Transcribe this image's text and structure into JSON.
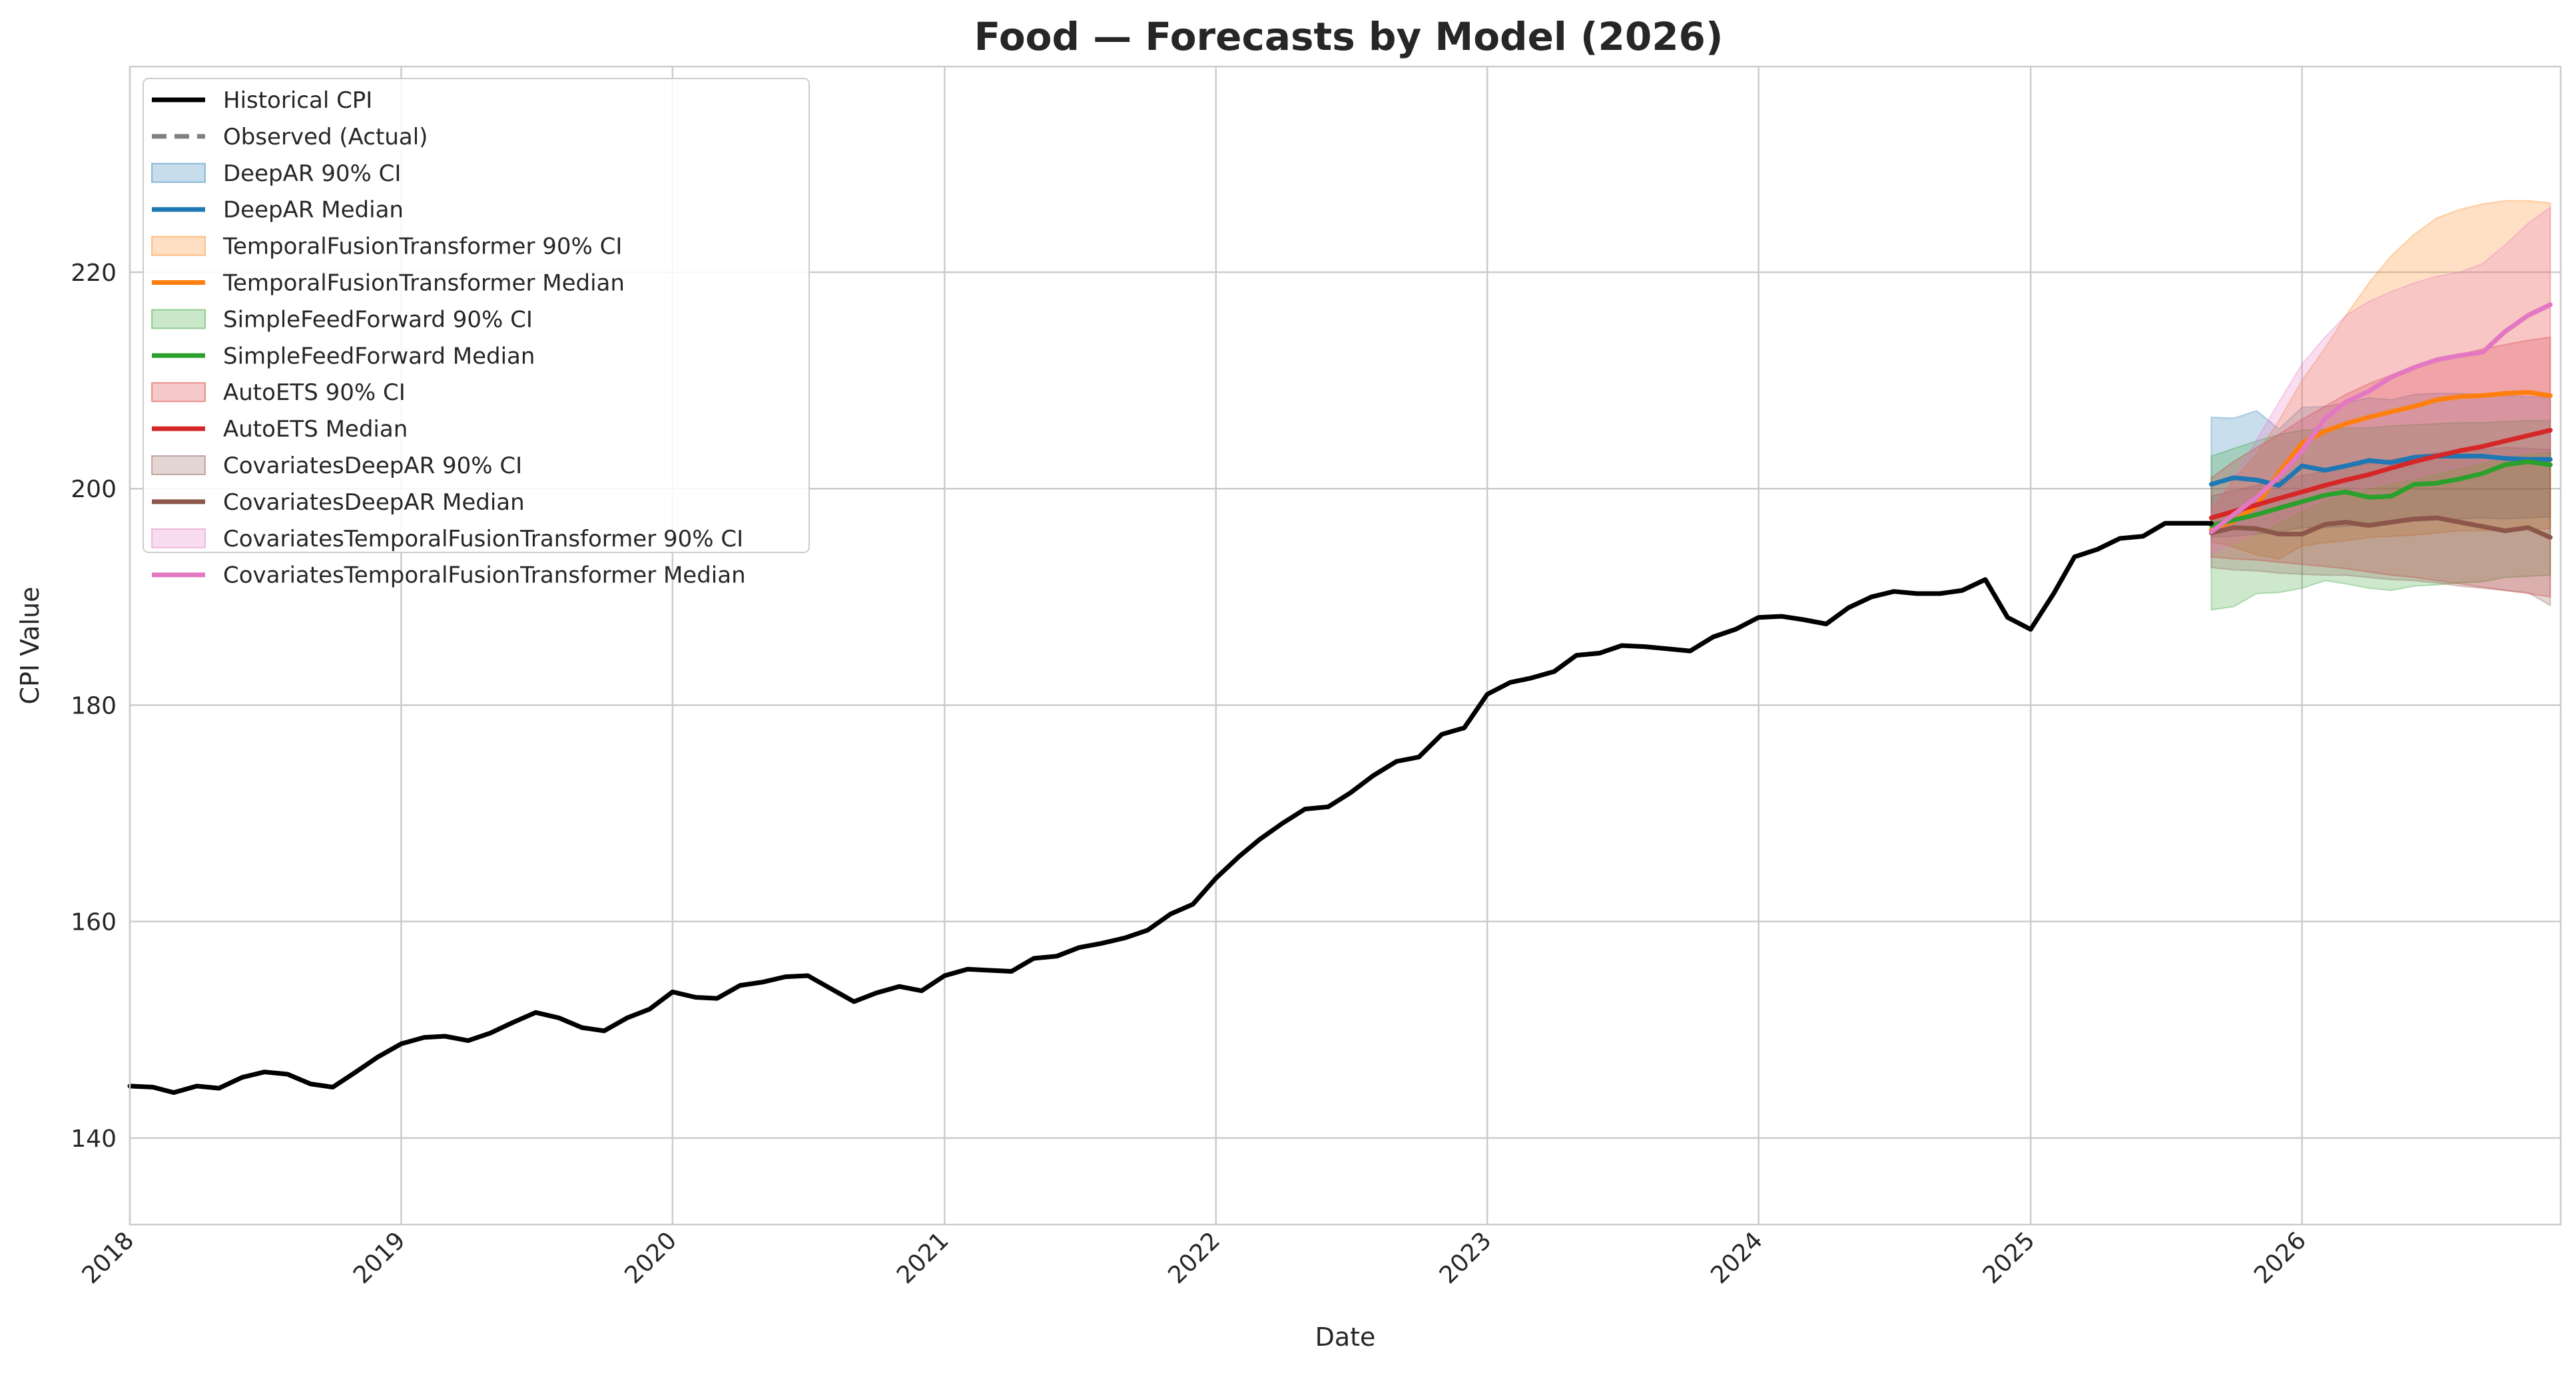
{
  "chart_data": {
    "type": "line",
    "title": "Food — Forecasts by Model (2026)",
    "xlabel": "Date",
    "ylabel": "CPI Value",
    "xlim": [
      "2018-01-01",
      "2026-12-15"
    ],
    "ylim": [
      132,
      239
    ],
    "grid": true,
    "legend_position": "top-left",
    "x_ticks": [
      "2018",
      "2019",
      "2020",
      "2021",
      "2022",
      "2023",
      "2024",
      "2025",
      "2026"
    ],
    "y_ticks": [
      140,
      160,
      180,
      200,
      220
    ],
    "legend": [
      {
        "label": "Historical CPI",
        "kind": "line",
        "color": "#000000"
      },
      {
        "label": "Observed (Actual)",
        "kind": "dash",
        "color": "#808080"
      },
      {
        "label": "DeepAR 90% CI",
        "kind": "band",
        "color": "#1f77b4"
      },
      {
        "label": "DeepAR Median",
        "kind": "line",
        "color": "#1f77b4"
      },
      {
        "label": "TemporalFusionTransformer 90% CI",
        "kind": "band",
        "color": "#ff7f0e"
      },
      {
        "label": "TemporalFusionTransformer Median",
        "kind": "line",
        "color": "#ff7f0e"
      },
      {
        "label": "SimpleFeedForward 90% CI",
        "kind": "band",
        "color": "#2ca02c"
      },
      {
        "label": "SimpleFeedForward Median",
        "kind": "line",
        "color": "#2ca02c"
      },
      {
        "label": "AutoETS 90% CI",
        "kind": "band",
        "color": "#d62728"
      },
      {
        "label": "AutoETS Median",
        "kind": "line",
        "color": "#d62728"
      },
      {
        "label": "CovariatesDeepAR 90% CI",
        "kind": "band",
        "color": "#8c564b"
      },
      {
        "label": "CovariatesDeepAR Median",
        "kind": "line",
        "color": "#8c564b"
      },
      {
        "label": "CovariatesTemporalFusionTransformer 90% CI",
        "kind": "band",
        "color": "#e377c2"
      },
      {
        "label": "CovariatesTemporalFusionTransformer Median",
        "kind": "line",
        "color": "#e377c2"
      }
    ],
    "historical": {
      "name": "Historical CPI",
      "color": "#000000",
      "x": [
        "2018-01",
        "2018-02",
        "2018-03",
        "2018-04",
        "2018-05",
        "2018-06",
        "2018-07",
        "2018-08",
        "2018-09",
        "2018-10",
        "2018-11",
        "2018-12",
        "2019-01",
        "2019-02",
        "2019-03",
        "2019-04",
        "2019-05",
        "2019-06",
        "2019-07",
        "2019-08",
        "2019-09",
        "2019-10",
        "2019-11",
        "2019-12",
        "2020-01",
        "2020-02",
        "2020-03",
        "2020-04",
        "2020-05",
        "2020-06",
        "2020-07",
        "2020-08",
        "2020-09",
        "2020-10",
        "2020-11",
        "2020-12",
        "2021-01",
        "2021-02",
        "2021-03",
        "2021-04",
        "2021-05",
        "2021-06",
        "2021-07",
        "2021-08",
        "2021-09",
        "2021-10",
        "2021-11",
        "2021-12",
        "2022-01",
        "2022-02",
        "2022-03",
        "2022-04",
        "2022-05",
        "2022-06",
        "2022-07",
        "2022-08",
        "2022-09",
        "2022-10",
        "2022-11",
        "2022-12",
        "2023-01",
        "2023-02",
        "2023-03",
        "2023-04",
        "2023-05",
        "2023-06",
        "2023-07",
        "2023-08",
        "2023-09",
        "2023-10",
        "2023-11",
        "2023-12",
        "2024-01",
        "2024-02",
        "2024-03",
        "2024-04",
        "2024-05",
        "2024-06",
        "2024-07",
        "2024-08",
        "2024-09",
        "2024-10",
        "2024-11",
        "2024-12",
        "2025-01",
        "2025-02",
        "2025-03",
        "2025-04",
        "2025-05",
        "2025-06",
        "2025-07",
        "2025-08",
        "2025-09"
      ],
      "y": [
        144.8,
        144.7,
        144.2,
        144.8,
        144.6,
        145.6,
        146.1,
        145.9,
        145.0,
        144.7,
        146.1,
        147.5,
        148.7,
        149.3,
        149.4,
        149.0,
        149.7,
        150.7,
        151.6,
        151.1,
        150.2,
        149.9,
        151.1,
        151.9,
        153.5,
        153.0,
        152.9,
        154.1,
        154.4,
        154.9,
        155.0,
        153.8,
        152.6,
        153.4,
        154.0,
        153.6,
        155.0,
        155.6,
        155.5,
        155.4,
        156.6,
        156.8,
        157.6,
        158.0,
        158.5,
        159.2,
        160.7,
        161.6,
        164.0,
        166.0,
        167.6,
        169.1,
        170.4,
        170.6,
        171.9,
        173.5,
        174.8,
        175.2,
        177.3,
        177.9,
        181.0,
        182.1,
        182.5,
        183.1,
        184.6,
        184.8,
        185.5,
        185.4,
        185.2,
        185.0,
        186.3,
        187.0,
        188.1,
        188.2,
        187.9,
        187.5,
        189.0,
        190.0,
        190.5,
        190.3,
        190.3,
        190.6,
        191.6,
        188.1,
        187.0,
        190.3,
        193.7,
        194.4,
        195.4,
        195.6,
        196.8,
        196.8,
        196.8
      ]
    },
    "forecast_x": [
      "2025-09",
      "2025-10",
      "2025-11",
      "2025-12",
      "2026-01",
      "2026-02",
      "2026-03",
      "2026-04",
      "2026-05",
      "2026-06",
      "2026-07",
      "2026-08",
      "2026-09",
      "2026-10",
      "2026-11",
      "2026-12"
    ],
    "series": [
      {
        "name": "DeepAR",
        "color": "#1f77b4",
        "median": [
          200.4,
          201.0,
          200.8,
          200.3,
          202.1,
          201.7,
          202.1,
          202.6,
          202.4,
          202.9,
          203.0,
          203.0,
          203.0,
          202.8,
          202.7,
          202.7
        ],
        "lower": [
          195.5,
          195.6,
          195.8,
          196.0,
          196.4,
          196.4,
          196.5,
          196.8,
          196.8,
          197.0,
          197.1,
          197.2,
          197.3,
          197.2,
          197.3,
          197.4
        ],
        "upper": [
          206.6,
          206.5,
          207.2,
          205.5,
          207.5,
          207.6,
          207.9,
          208.4,
          208.2,
          208.7,
          208.8,
          208.8,
          208.7,
          208.6,
          208.5,
          208.4
        ]
      },
      {
        "name": "TemporalFusionTransformer",
        "color": "#ff7f0e",
        "median": [
          196.2,
          197.0,
          198.4,
          201.5,
          204.2,
          205.3,
          206.0,
          206.6,
          207.1,
          207.6,
          208.2,
          208.5,
          208.6,
          208.8,
          208.9,
          208.6
        ],
        "lower": [
          195.1,
          194.6,
          193.9,
          193.5,
          194.7,
          195.0,
          195.2,
          195.5,
          195.6,
          195.7,
          195.9,
          196.1,
          196.1,
          196.2,
          196.3,
          196.3
        ],
        "upper": [
          198.0,
          200.8,
          203.2,
          206.3,
          210.0,
          213.0,
          216.0,
          219.0,
          221.5,
          223.5,
          225.0,
          225.8,
          226.3,
          226.6,
          226.6,
          226.4
        ]
      },
      {
        "name": "SimpleFeedForward",
        "color": "#2ca02c",
        "median": [
          196.6,
          197.1,
          197.6,
          198.2,
          198.8,
          199.4,
          199.7,
          199.2,
          199.3,
          200.4,
          200.5,
          200.9,
          201.4,
          202.2,
          202.5,
          202.2
        ],
        "lower": [
          188.8,
          189.1,
          190.3,
          190.4,
          190.8,
          191.5,
          191.2,
          190.8,
          190.6,
          191.0,
          191.1,
          191.3,
          191.4,
          191.8,
          191.9,
          192.0
        ],
        "upper": [
          203.0,
          203.7,
          204.4,
          205.0,
          205.4,
          205.5,
          205.6,
          205.6,
          205.8,
          205.9,
          206.0,
          206.1,
          206.1,
          206.2,
          206.3,
          206.3
        ]
      },
      {
        "name": "AutoETS",
        "color": "#d62728",
        "median": [
          197.3,
          197.9,
          198.5,
          199.1,
          199.7,
          200.3,
          200.8,
          201.3,
          201.9,
          202.5,
          203.0,
          203.5,
          203.9,
          204.4,
          204.9,
          205.4
        ],
        "lower": [
          193.7,
          193.5,
          193.4,
          193.2,
          193.0,
          192.8,
          192.6,
          192.3,
          192.0,
          191.8,
          191.5,
          191.2,
          190.9,
          190.6,
          190.3,
          190.0
        ],
        "upper": [
          201.0,
          202.5,
          203.8,
          205.0,
          206.4,
          207.6,
          208.7,
          209.7,
          210.5,
          211.3,
          211.9,
          212.4,
          212.9,
          213.3,
          213.7,
          214.0
        ]
      },
      {
        "name": "CovariatesDeepAR",
        "color": "#8c564b",
        "median": [
          195.9,
          196.4,
          196.3,
          195.8,
          195.8,
          196.7,
          196.9,
          196.6,
          196.9,
          197.2,
          197.3,
          196.9,
          196.5,
          196.1,
          196.4,
          195.5
        ],
        "lower": [
          192.7,
          192.5,
          192.4,
          192.2,
          192.1,
          192.0,
          192.0,
          191.8,
          191.6,
          191.5,
          191.3,
          191.0,
          190.8,
          190.6,
          190.4,
          189.2
        ],
        "upper": [
          199.3,
          199.8,
          200.3,
          200.8,
          201.2,
          201.6,
          202.0,
          202.3,
          202.7,
          203.0,
          203.3,
          203.5,
          203.6,
          203.8,
          203.7,
          203.6
        ]
      },
      {
        "name": "CovariatesTemporalFusionTransformer",
        "color": "#e377c2",
        "median": [
          196.0,
          197.6,
          199.2,
          201.1,
          203.5,
          206.5,
          208.0,
          209.0,
          210.3,
          211.2,
          211.9,
          212.3,
          212.6,
          214.5,
          216.0,
          217.0
        ],
        "lower": [
          194.0,
          195.0,
          196.0,
          197.0,
          198.0,
          199.0,
          199.6,
          200.1,
          200.6,
          201.0,
          201.5,
          202.0,
          202.5,
          203.0,
          203.3,
          203.5
        ],
        "upper": [
          198.0,
          201.0,
          204.5,
          208.0,
          211.5,
          214.0,
          216.0,
          217.3,
          218.2,
          219.0,
          219.6,
          220.0,
          220.8,
          222.5,
          224.5,
          226.0
        ]
      }
    ]
  }
}
